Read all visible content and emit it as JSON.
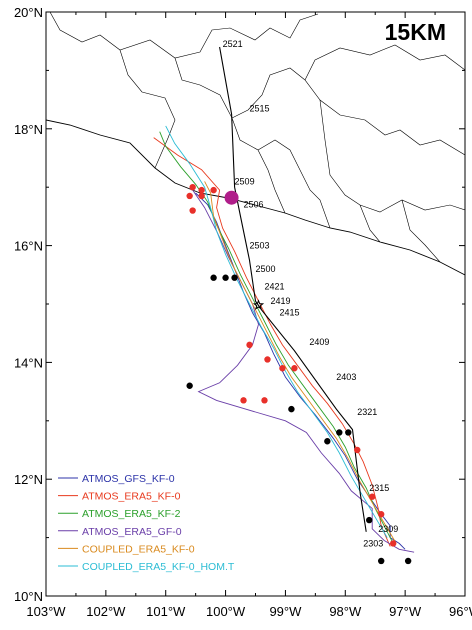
{
  "title": "15KM",
  "axes": {
    "lon_ticks": [
      -103,
      -102,
      -101,
      -100,
      -99,
      -98,
      -97,
      -96
    ],
    "lon_labels": [
      "103°W",
      "102°W",
      "101°W",
      "100°W",
      "99°W",
      "98°W",
      "97°W",
      "96°W"
    ],
    "lat_ticks": [
      10,
      12,
      14,
      16,
      18,
      20
    ],
    "lat_labels": [
      "10°N",
      "12°N",
      "14°N",
      "16°N",
      "18°N",
      "20°N"
    ],
    "lon_range": [
      -103,
      -96
    ],
    "lat_range": [
      10,
      20
    ]
  },
  "observed_track": {
    "color": "#000000",
    "points": [
      [
        -100.1,
        19.4
      ],
      [
        -99.9,
        18.25
      ],
      [
        -99.85,
        17.0
      ],
      [
        -99.75,
        16.5
      ],
      [
        -99.6,
        15.75
      ],
      [
        -99.5,
        15.05
      ],
      [
        -99.4,
        14.9
      ],
      [
        -98.85,
        14.2
      ],
      [
        -98.15,
        13.2
      ],
      [
        -97.88,
        12.85
      ],
      [
        -97.75,
        11.75
      ],
      [
        -97.65,
        11.1
      ]
    ],
    "time_labels": [
      {
        "text": "2521",
        "lon": -100.05,
        "lat": 19.4
      },
      {
        "text": "2515",
        "lon": -99.6,
        "lat": 18.3
      },
      {
        "text": "2509",
        "lon": -99.85,
        "lat": 17.05
      },
      {
        "text": "2506",
        "lon": -99.7,
        "lat": 16.65
      },
      {
        "text": "2503",
        "lon": -99.6,
        "lat": 15.95
      },
      {
        "text": "2500",
        "lon": -99.5,
        "lat": 15.55
      },
      {
        "text": "2421",
        "lon": -99.35,
        "lat": 15.25
      },
      {
        "text": "2419",
        "lon": -99.25,
        "lat": 15.0
      },
      {
        "text": "2415",
        "lon": -99.1,
        "lat": 14.8
      },
      {
        "text": "2409",
        "lon": -98.6,
        "lat": 14.3
      },
      {
        "text": "2403",
        "lon": -98.15,
        "lat": 13.7
      },
      {
        "text": "2321",
        "lon": -97.8,
        "lat": 13.1
      },
      {
        "text": "2315",
        "lon": -97.6,
        "lat": 11.8
      },
      {
        "text": "2309",
        "lon": -97.45,
        "lat": 11.1
      },
      {
        "text": "2303",
        "lon": -97.7,
        "lat": 10.85
      }
    ],
    "landfall_marker": {
      "lon": -99.9,
      "lat": 16.82,
      "color": "#b01e8a"
    },
    "star_marker": {
      "lon": -99.45,
      "lat": 14.98
    }
  },
  "series": [
    {
      "name": "ATMOS_GFS_KF-0",
      "color": "#2c33a8",
      "points": [
        [
          -97.0,
          10.8
        ],
        [
          -97.1,
          10.9
        ],
        [
          -97.25,
          11.0
        ],
        [
          -97.25,
          11.2
        ],
        [
          -97.4,
          11.4
        ],
        [
          -97.6,
          11.7
        ],
        [
          -97.8,
          12.0
        ],
        [
          -98.0,
          12.4
        ],
        [
          -98.2,
          12.7
        ],
        [
          -98.5,
          13.1
        ],
        [
          -98.75,
          13.4
        ],
        [
          -99.0,
          13.75
        ],
        [
          -99.2,
          14.15
        ],
        [
          -99.35,
          14.5
        ],
        [
          -99.55,
          14.85
        ],
        [
          -99.7,
          15.2
        ],
        [
          -99.85,
          15.6
        ],
        [
          -100.0,
          16.0
        ],
        [
          -100.15,
          16.4
        ],
        [
          -100.3,
          16.7
        ],
        [
          -100.5,
          16.9
        ]
      ]
    },
    {
      "name": "ATMOS_ERA5_KF-0",
      "color": "#e83a1e",
      "points": [
        [
          -97.25,
          10.85
        ],
        [
          -97.4,
          11.2
        ],
        [
          -97.45,
          11.5
        ],
        [
          -97.55,
          11.9
        ],
        [
          -97.7,
          12.3
        ],
        [
          -97.85,
          12.6
        ],
        [
          -98.05,
          12.95
        ],
        [
          -98.3,
          13.3
        ],
        [
          -98.55,
          13.6
        ],
        [
          -98.8,
          13.95
        ],
        [
          -99.05,
          14.3
        ],
        [
          -99.25,
          14.65
        ],
        [
          -99.45,
          15.05
        ],
        [
          -99.65,
          15.45
        ],
        [
          -99.85,
          15.9
        ],
        [
          -100.05,
          16.3
        ],
        [
          -100.15,
          16.65
        ],
        [
          -100.1,
          16.95
        ],
        [
          -100.4,
          17.3
        ],
        [
          -100.8,
          17.55
        ],
        [
          -101.2,
          17.85
        ]
      ]
    },
    {
      "name": "ATMOS_ERA5_KF-2",
      "color": "#2ca02c",
      "points": [
        [
          -97.2,
          10.9
        ],
        [
          -97.35,
          11.2
        ],
        [
          -97.5,
          11.5
        ],
        [
          -97.65,
          11.85
        ],
        [
          -97.85,
          12.2
        ],
        [
          -98.0,
          12.55
        ],
        [
          -98.2,
          12.9
        ],
        [
          -98.45,
          13.25
        ],
        [
          -98.7,
          13.6
        ],
        [
          -98.95,
          13.95
        ],
        [
          -99.15,
          14.3
        ],
        [
          -99.35,
          14.7
        ],
        [
          -99.55,
          15.1
        ],
        [
          -99.75,
          15.5
        ],
        [
          -99.95,
          15.95
        ],
        [
          -100.15,
          16.35
        ],
        [
          -100.3,
          16.75
        ],
        [
          -100.5,
          17.05
        ],
        [
          -100.75,
          17.35
        ],
        [
          -101.0,
          17.7
        ],
        [
          -101.1,
          17.95
        ]
      ]
    },
    {
      "name": "ATMOS_ERA5_GF-0",
      "color": "#6a3fa8",
      "points": [
        [
          -96.85,
          10.75
        ],
        [
          -97.1,
          10.8
        ],
        [
          -97.35,
          10.95
        ],
        [
          -97.55,
          11.15
        ],
        [
          -97.55,
          11.5
        ],
        [
          -97.9,
          11.8
        ],
        [
          -98.1,
          12.1
        ],
        [
          -98.4,
          12.45
        ],
        [
          -98.65,
          12.8
        ],
        [
          -99.0,
          13.0
        ],
        [
          -99.5,
          13.15
        ],
        [
          -100.15,
          13.35
        ],
        [
          -100.45,
          13.5
        ],
        [
          -100.1,
          13.65
        ],
        [
          -99.8,
          13.95
        ],
        [
          -99.55,
          14.3
        ],
        [
          -99.45,
          14.65
        ],
        [
          -99.55,
          15.0
        ],
        [
          -99.75,
          15.4
        ],
        [
          -99.95,
          15.8
        ],
        [
          -100.15,
          16.25
        ],
        [
          -100.35,
          16.65
        ],
        [
          -100.55,
          16.95
        ]
      ]
    },
    {
      "name": "COUPLED_ERA5_KF-0",
      "color": "#d98a1e",
      "points": [
        [
          -97.15,
          10.9
        ],
        [
          -97.35,
          11.25
        ],
        [
          -97.55,
          11.6
        ],
        [
          -97.75,
          11.95
        ],
        [
          -97.95,
          12.35
        ],
        [
          -98.15,
          12.7
        ],
        [
          -98.4,
          13.05
        ],
        [
          -98.65,
          13.4
        ],
        [
          -98.9,
          13.75
        ],
        [
          -99.1,
          14.1
        ],
        [
          -99.3,
          14.5
        ],
        [
          -99.5,
          14.9
        ],
        [
          -99.7,
          15.3
        ],
        [
          -99.9,
          15.7
        ],
        [
          -100.05,
          16.1
        ],
        [
          -100.2,
          16.5
        ],
        [
          -100.25,
          16.9
        ],
        [
          -100.35,
          17.1
        ]
      ]
    },
    {
      "name": "COUPLED_ERA5_KF-0_HOM.T",
      "color": "#2bbcd4",
      "points": [
        [
          -97.3,
          11.0
        ],
        [
          -97.5,
          11.35
        ],
        [
          -97.7,
          11.7
        ],
        [
          -97.9,
          12.05
        ],
        [
          -98.1,
          12.45
        ],
        [
          -98.3,
          12.8
        ],
        [
          -98.55,
          13.15
        ],
        [
          -98.8,
          13.5
        ],
        [
          -99.0,
          13.85
        ],
        [
          -99.2,
          14.25
        ],
        [
          -99.4,
          14.6
        ],
        [
          -99.6,
          15.0
        ],
        [
          -99.8,
          15.4
        ],
        [
          -100.0,
          15.85
        ],
        [
          -100.15,
          16.25
        ],
        [
          -100.25,
          16.65
        ],
        [
          -100.35,
          17.0
        ],
        [
          -100.6,
          17.4
        ],
        [
          -100.85,
          17.75
        ],
        [
          -101.0,
          18.05
        ]
      ]
    }
  ],
  "black_dots": [
    [
      -100.2,
      15.45
    ],
    [
      -100.0,
      15.45
    ],
    [
      -99.85,
      15.45
    ],
    [
      -100.6,
      13.6
    ],
    [
      -98.9,
      13.2
    ],
    [
      -98.1,
      12.8
    ],
    [
      -97.95,
      12.8
    ],
    [
      -98.3,
      12.65
    ],
    [
      -97.6,
      11.3
    ],
    [
      -97.4,
      10.6
    ],
    [
      -96.95,
      10.6
    ]
  ],
  "red_dots": [
    [
      -100.55,
      17.0
    ],
    [
      -100.6,
      16.85
    ],
    [
      -100.4,
      16.85
    ],
    [
      -100.55,
      16.6
    ],
    [
      -100.4,
      16.95
    ],
    [
      -100.2,
      16.95
    ],
    [
      -99.6,
      14.3
    ],
    [
      -99.3,
      14.05
    ],
    [
      -99.05,
      13.9
    ],
    [
      -98.85,
      13.9
    ],
    [
      -99.7,
      13.35
    ],
    [
      -99.35,
      13.35
    ],
    [
      -97.8,
      12.5
    ],
    [
      -97.55,
      11.7
    ],
    [
      -97.4,
      11.4
    ],
    [
      -97.2,
      10.9
    ]
  ]
}
